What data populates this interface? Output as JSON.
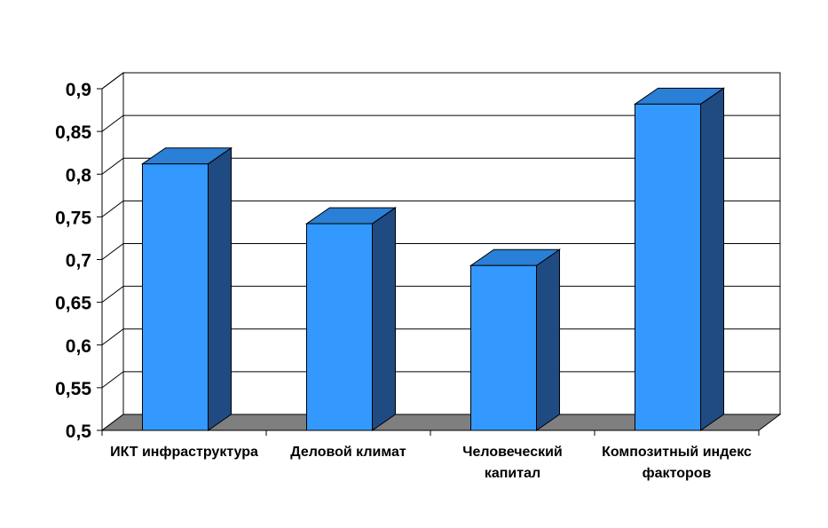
{
  "chart_data": {
    "type": "bar",
    "title": "",
    "xlabel": "",
    "ylabel": "",
    "ylim": [
      0.5,
      0.9
    ],
    "ytick_labels": [
      "0,5",
      "0,55",
      "0,6",
      "0,65",
      "0,7",
      "0,75",
      "0,8",
      "0,85",
      "0,9"
    ],
    "categories": [
      [
        "ИКТ инфраструктура"
      ],
      [
        "Деловой климат"
      ],
      [
        "Человеческий",
        "капитал"
      ],
      [
        "Композитный индекс",
        "факторов"
      ]
    ],
    "values": [
      0.812,
      0.742,
      0.693,
      0.882
    ],
    "grid": true,
    "legend": "none",
    "style": "3d-column"
  },
  "colors": {
    "bar_front": "#3399ff",
    "bar_top": "#2a7fd6",
    "bar_side": "#1f4b82",
    "floor": "#7f7f7f",
    "gridline": "#000000",
    "background": "#ffffff"
  }
}
